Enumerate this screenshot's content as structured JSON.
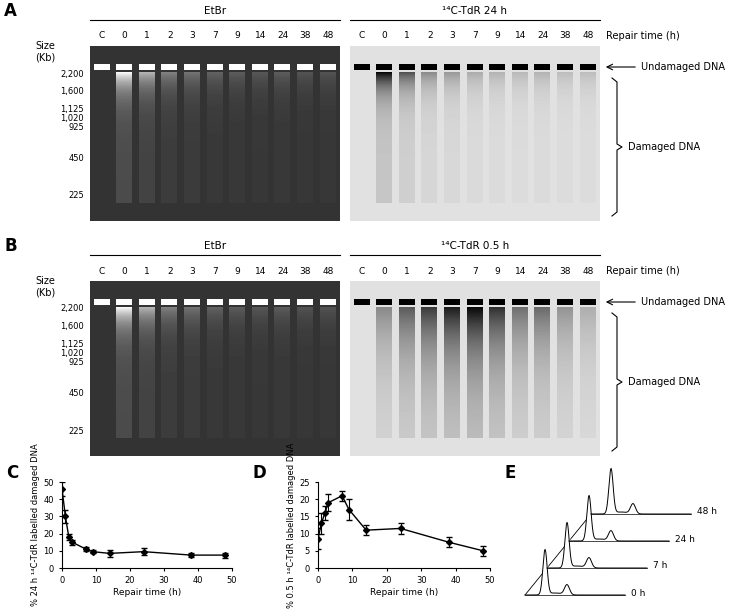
{
  "chart_data": [
    {
      "type": "line",
      "annotations": [
        "C"
      ],
      "x": [
        0,
        1,
        2,
        3,
        7,
        9,
        14,
        24,
        38,
        48
      ],
      "values": [
        46,
        30,
        18,
        15,
        11,
        9.5,
        8.5,
        9.5,
        7.5,
        7.5
      ],
      "errors": [
        4,
        4,
        2,
        1.5,
        1,
        1,
        2,
        2,
        1,
        1.5
      ],
      "x_label": "Repair time (h)",
      "y_label": "% 24 h ¹⁴C-TdR labelled damaged DNA",
      "xlim": [
        0,
        50
      ],
      "ylim": [
        0,
        50
      ],
      "xticks": [
        0,
        10,
        20,
        30,
        40,
        50
      ],
      "yticks": [
        0,
        10,
        20,
        30,
        40,
        50
      ],
      "color": "#000000",
      "marker": "diamond",
      "line_style": "solid"
    },
    {
      "type": "line",
      "annotations": [
        "D"
      ],
      "x": [
        0,
        1,
        2,
        3,
        7,
        9,
        14,
        24,
        38,
        48
      ],
      "values": [
        8.5,
        13,
        16,
        19,
        21,
        17,
        11,
        11.5,
        7.5,
        5
      ],
      "errors": [
        3,
        3,
        2,
        2.5,
        1.5,
        3,
        1.5,
        1.5,
        1.5,
        1.5
      ],
      "x_label": "Repair time (h)",
      "y_label": "% 0.5 h ¹⁴C-TdR labelled damaged DNA",
      "xlim": [
        0,
        50
      ],
      "ylim": [
        0,
        25
      ],
      "xticks": [
        0,
        10,
        20,
        30,
        40,
        50
      ],
      "yticks": [
        0,
        5,
        10,
        15,
        20,
        25
      ],
      "color": "#000000",
      "marker": "diamond",
      "line_style": "solid"
    }
  ],
  "gel_panels": [
    {
      "annotation": "A",
      "size_label": "Size\n(Kb)",
      "size_markers": [
        {
          "value": 2200,
          "label": "2,200"
        },
        {
          "value": 1600,
          "label": "1,600"
        },
        {
          "value": 1125,
          "label": "1,125"
        },
        {
          "value": 1020,
          "label": "1,020"
        },
        925,
        450,
        225
      ],
      "lanes": [
        "C",
        "0",
        "1",
        "2",
        "3",
        "7",
        "9",
        "14",
        "24",
        "38",
        "48"
      ],
      "lanes_title": "Repair time (h)",
      "gels": [
        {
          "title": "EtBr"
        },
        {
          "title": "¹⁴C-TdR 24 h"
        }
      ],
      "undamaged_label": "Undamaged DNA",
      "damaged_label": "Damaged DNA"
    },
    {
      "annotation": "B",
      "size_label": "Size\n(Kb)",
      "size_markers": [
        {
          "value": 2200,
          "label": "2,200"
        },
        {
          "value": 1600,
          "label": "1,600"
        },
        {
          "value": 1125,
          "label": "1,125"
        },
        {
          "value": 1020,
          "label": "1,020"
        },
        925,
        450,
        225
      ],
      "lanes": [
        "C",
        "0",
        "1",
        "2",
        "3",
        "7",
        "9",
        "14",
        "24",
        "38",
        "48"
      ],
      "lanes_title": "Repair time (h)",
      "gels": [
        {
          "title": "EtBr"
        },
        {
          "title": "¹⁴C-TdR 0.5 h"
        }
      ],
      "undamaged_label": "Undamaged DNA",
      "damaged_label": "Damaged DNA"
    }
  ],
  "flow_panel": {
    "annotation": "E",
    "traces": [
      "0 h",
      "7 h",
      "24 h",
      "48 h"
    ]
  }
}
